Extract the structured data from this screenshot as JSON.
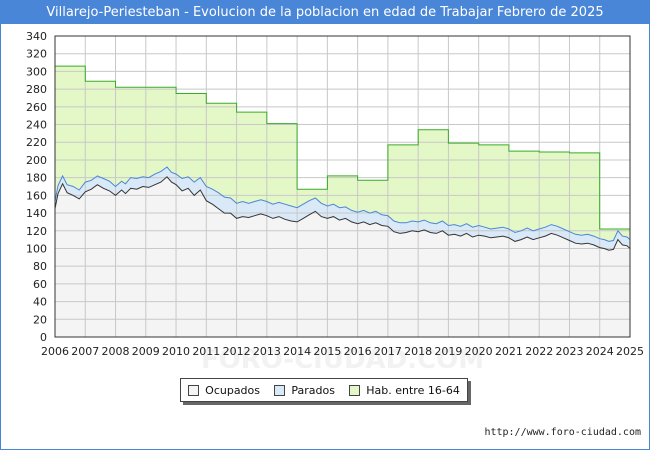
{
  "chart_data": {
    "type": "area",
    "title": "Villarejo-Periesteban - Evolucion de la poblacion en edad de Trabajar Febrero de 2025",
    "xlabel": "",
    "ylabel": "",
    "xlim": [
      2006,
      2025
    ],
    "ylim": [
      0,
      340
    ],
    "y_ticks": [
      0,
      20,
      40,
      60,
      80,
      100,
      120,
      140,
      160,
      180,
      200,
      220,
      240,
      260,
      280,
      300,
      320,
      340
    ],
    "x_ticks": [
      "2006",
      "2007",
      "2008",
      "2009",
      "2010",
      "2011",
      "2012",
      "2013",
      "2014",
      "2015",
      "2016",
      "2017",
      "2018",
      "2019",
      "2020",
      "2021",
      "2022",
      "2023",
      "2024",
      "2025"
    ],
    "grid": true,
    "legend_position": "bottom",
    "watermark": "FORO-CIUDAD.COM",
    "series": [
      {
        "name": "Ocupados",
        "color": "#f4f4f4",
        "x": [
          2006.0,
          2006.1,
          2006.25,
          2006.4,
          2006.6,
          2006.8,
          2007.0,
          2007.2,
          2007.4,
          2007.6,
          2007.8,
          2008.0,
          2008.2,
          2008.33,
          2008.5,
          2008.7,
          2008.9,
          2009.1,
          2009.3,
          2009.5,
          2009.7,
          2009.85,
          2010.0,
          2010.2,
          2010.4,
          2010.6,
          2010.8,
          2011.0,
          2011.2,
          2011.4,
          2011.6,
          2011.8,
          2012.0,
          2012.2,
          2012.4,
          2012.6,
          2012.8,
          2013.0,
          2013.2,
          2013.4,
          2013.6,
          2013.8,
          2014.0,
          2014.2,
          2014.4,
          2014.6,
          2014.8,
          2015.0,
          2015.2,
          2015.4,
          2015.6,
          2015.8,
          2016.0,
          2016.2,
          2016.4,
          2016.6,
          2016.8,
          2017.0,
          2017.2,
          2017.4,
          2017.6,
          2017.8,
          2018.0,
          2018.2,
          2018.4,
          2018.6,
          2018.8,
          2019.0,
          2019.2,
          2019.4,
          2019.6,
          2019.8,
          2020.0,
          2020.2,
          2020.4,
          2020.6,
          2020.8,
          2021.0,
          2021.2,
          2021.4,
          2021.6,
          2021.8,
          2022.0,
          2022.2,
          2022.4,
          2022.6,
          2022.8,
          2023.0,
          2023.2,
          2023.4,
          2023.6,
          2023.8,
          2024.0,
          2024.15,
          2024.3,
          2024.45,
          2024.6,
          2024.75,
          2024.9,
          2025.0
        ],
        "values": [
          145,
          162,
          173,
          163,
          160,
          156,
          164,
          167,
          172,
          168,
          165,
          160,
          166,
          162,
          168,
          167,
          170,
          169,
          172,
          175,
          181,
          175,
          172,
          165,
          168,
          160,
          166,
          154,
          150,
          145,
          140,
          140,
          134,
          136,
          135,
          137,
          139,
          137,
          134,
          136,
          133,
          131,
          130,
          134,
          138,
          142,
          136,
          134,
          136,
          132,
          134,
          130,
          128,
          130,
          127,
          129,
          126,
          125,
          119,
          117,
          118,
          120,
          119,
          121,
          118,
          117,
          120,
          115,
          116,
          114,
          117,
          113,
          115,
          114,
          112,
          113,
          114,
          112,
          108,
          110,
          113,
          110,
          112,
          114,
          117,
          115,
          112,
          109,
          106,
          105,
          106,
          104,
          101,
          100,
          98,
          99,
          110,
          104,
          103,
          100
        ]
      },
      {
        "name": "Parados",
        "color": "#d9e9f7",
        "x": [
          2006.0,
          2006.1,
          2006.25,
          2006.4,
          2006.6,
          2006.8,
          2007.0,
          2007.2,
          2007.4,
          2007.6,
          2007.8,
          2008.0,
          2008.2,
          2008.33,
          2008.5,
          2008.7,
          2008.9,
          2009.1,
          2009.3,
          2009.5,
          2009.7,
          2009.85,
          2010.0,
          2010.2,
          2010.4,
          2010.6,
          2010.8,
          2011.0,
          2011.2,
          2011.4,
          2011.6,
          2011.8,
          2012.0,
          2012.2,
          2012.4,
          2012.6,
          2012.8,
          2013.0,
          2013.2,
          2013.4,
          2013.6,
          2013.8,
          2014.0,
          2014.2,
          2014.4,
          2014.6,
          2014.8,
          2015.0,
          2015.2,
          2015.4,
          2015.6,
          2015.8,
          2016.0,
          2016.2,
          2016.4,
          2016.6,
          2016.8,
          2017.0,
          2017.2,
          2017.4,
          2017.6,
          2017.8,
          2018.0,
          2018.2,
          2018.4,
          2018.6,
          2018.8,
          2019.0,
          2019.2,
          2019.4,
          2019.6,
          2019.8,
          2020.0,
          2020.2,
          2020.4,
          2020.6,
          2020.8,
          2021.0,
          2021.2,
          2021.4,
          2021.6,
          2021.8,
          2022.0,
          2022.2,
          2022.4,
          2022.6,
          2022.8,
          2023.0,
          2023.2,
          2023.4,
          2023.6,
          2023.8,
          2024.0,
          2024.15,
          2024.3,
          2024.45,
          2024.6,
          2024.75,
          2024.9,
          2025.0
        ],
        "values": [
          8,
          9,
          9,
          9,
          10,
          10,
          11,
          10,
          10,
          11,
          11,
          10,
          10,
          11,
          12,
          12,
          11,
          11,
          12,
          12,
          11,
          11,
          12,
          14,
          13,
          15,
          14,
          16,
          17,
          18,
          18,
          17,
          17,
          17,
          16,
          16,
          16,
          16,
          16,
          16,
          17,
          17,
          16,
          16,
          16,
          15,
          15,
          14,
          14,
          14,
          13,
          13,
          13,
          13,
          13,
          13,
          12,
          12,
          12,
          12,
          11,
          11,
          11,
          11,
          11,
          11,
          11,
          11,
          11,
          11,
          11,
          11,
          11,
          10,
          10,
          10,
          10,
          10,
          10,
          10,
          10,
          10,
          10,
          10,
          10,
          10,
          10,
          10,
          10,
          10,
          10,
          10,
          10,
          10,
          10,
          10,
          10,
          10,
          10,
          10
        ]
      },
      {
        "name": "Hab. entre 16-64",
        "color": "#e3f8c6",
        "x": [
          2006.0,
          2007.0,
          2008.0,
          2010.0,
          2011.0,
          2012.0,
          2013.0,
          2014.0,
          2015.0,
          2016.0,
          2017.0,
          2018.0,
          2019.0,
          2020.0,
          2021.0,
          2022.0,
          2023.0,
          2024.0,
          2025.0
        ],
        "values": [
          306,
          289,
          282,
          275,
          264,
          254,
          241,
          167,
          182,
          177,
          217,
          234,
          219,
          217,
          210,
          209,
          208,
          122,
          122
        ]
      }
    ]
  },
  "legend": {
    "items": [
      {
        "label": "Ocupados",
        "color": "#f4f4f4"
      },
      {
        "label": "Parados",
        "color": "#d9e9f7"
      },
      {
        "label": "Hab. entre 16-64",
        "color": "#e3f8c6"
      }
    ]
  },
  "footer": {
    "url": "http://www.foro-ciudad.com"
  }
}
